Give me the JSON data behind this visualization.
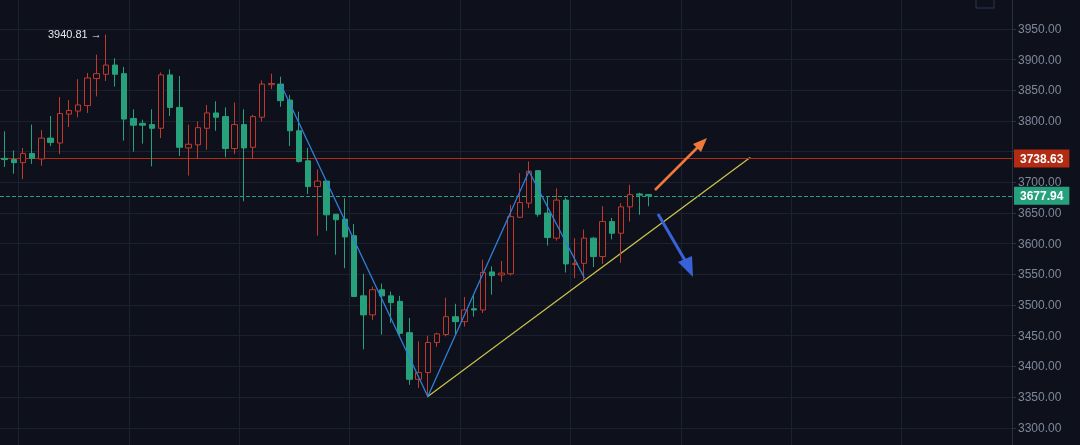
{
  "chart_data": {
    "type": "candlestick",
    "categories": [
      null,
      null,
      null,
      null,
      null,
      null,
      null,
      null,
      null,
      null,
      null,
      null,
      null,
      null,
      null,
      null,
      null,
      null,
      null,
      null,
      null,
      null,
      null,
      null,
      null,
      null,
      null,
      null,
      null,
      null,
      null,
      null,
      null,
      null,
      null,
      null,
      null,
      null,
      null,
      null,
      null,
      null,
      null,
      null,
      null,
      null,
      null,
      null,
      null,
      null,
      null,
      null,
      null,
      null,
      null,
      null,
      null,
      null,
      null,
      null,
      null,
      null,
      null,
      null,
      null,
      null,
      null,
      null,
      null,
      null,
      null,
      null,
      null,
      null,
      null,
      null,
      null,
      null,
      null,
      null,
      null,
      null,
      null,
      null,
      null,
      null,
      null,
      null,
      null,
      null,
      null,
      null,
      null,
      null,
      null,
      null,
      null,
      null,
      null,
      null,
      null,
      null,
      null,
      null,
      null,
      null,
      null,
      null,
      null,
      null
    ],
    "ohlc": [
      [
        3739,
        3783,
        3725,
        3737
      ],
      [
        3737,
        3752,
        3714,
        3732
      ],
      [
        3732,
        3756,
        3705,
        3747
      ],
      [
        3747,
        3794,
        3730,
        3739
      ],
      [
        3738,
        3785,
        3727,
        3772
      ],
      [
        3772,
        3808,
        3759,
        3765
      ],
      [
        3764,
        3839,
        3746,
        3812
      ],
      [
        3811,
        3834,
        3790,
        3817
      ],
      [
        3816,
        3868,
        3806,
        3826
      ],
      [
        3825,
        3878,
        3813,
        3870
      ],
      [
        3869,
        3908,
        3840,
        3877
      ],
      [
        3876,
        3940.81,
        3865,
        3891
      ],
      [
        3891,
        3902,
        3856,
        3876
      ],
      [
        3877,
        3888,
        3768,
        3803
      ],
      [
        3804,
        3819,
        3750,
        3793
      ],
      [
        3796,
        3802,
        3763,
        3793
      ],
      [
        3794,
        3819,
        3726,
        3788
      ],
      [
        3788,
        3879,
        3772,
        3875
      ],
      [
        3875,
        3884,
        3808,
        3822
      ],
      [
        3822,
        3873,
        3743,
        3757
      ],
      [
        3756,
        3794,
        3711,
        3762
      ],
      [
        3761,
        3799,
        3738,
        3789
      ],
      [
        3788,
        3826,
        3753,
        3813
      ],
      [
        3813,
        3832,
        3784,
        3806
      ],
      [
        3807,
        3822,
        3741,
        3755
      ],
      [
        3755,
        3830,
        3746,
        3794
      ],
      [
        3794,
        3819,
        3669,
        3756
      ],
      [
        3757,
        3810,
        3738,
        3807
      ],
      [
        3806,
        3866,
        3799,
        3860
      ],
      [
        3859,
        3877,
        3852,
        3861
      ],
      [
        3860,
        3872,
        3823,
        3833
      ],
      [
        3834,
        3842,
        3759,
        3784
      ],
      [
        3784,
        3815,
        3732,
        3734
      ],
      [
        3735,
        3756,
        3681,
        3693
      ],
      [
        3693,
        3721,
        3613,
        3702
      ],
      [
        3702,
        3702,
        3621,
        3647
      ],
      [
        3648,
        3648,
        3582,
        3639
      ],
      [
        3640,
        3674,
        3560,
        3611
      ],
      [
        3613,
        3632,
        3513,
        3514
      ],
      [
        3515,
        3551,
        3428,
        3484
      ],
      [
        3484,
        3530,
        3476,
        3525
      ],
      [
        3525,
        3535,
        3452,
        3515
      ],
      [
        3515,
        3522,
        3471,
        3504
      ],
      [
        3506,
        3515,
        3449,
        3454
      ],
      [
        3455,
        3479,
        3370,
        3379
      ],
      [
        3379,
        3441,
        3365,
        3390
      ],
      [
        3390,
        3450,
        3351,
        3439
      ],
      [
        3439,
        3455,
        3432,
        3453
      ],
      [
        3452,
        3512,
        3449,
        3481
      ],
      [
        3481,
        3502,
        3452,
        3473
      ],
      [
        3473,
        3513,
        3465,
        3492
      ],
      [
        3494,
        3518,
        3481,
        3492
      ],
      [
        3492,
        3574,
        3487,
        3553
      ],
      [
        3554,
        3563,
        3517,
        3548
      ],
      [
        3549,
        3572,
        3538,
        3552
      ],
      [
        3551,
        3663,
        3548,
        3644
      ],
      [
        3643,
        3715,
        3642,
        3667
      ],
      [
        3666,
        3734,
        3658,
        3718
      ],
      [
        3719,
        3719,
        3644,
        3648
      ],
      [
        3650,
        3677,
        3597,
        3610
      ],
      [
        3609,
        3690,
        3605,
        3671
      ],
      [
        3671,
        3675,
        3553,
        3567
      ],
      [
        3566,
        3609,
        3544,
        3568
      ],
      [
        3568,
        3623,
        3539,
        3609
      ],
      [
        3609,
        3611,
        3562,
        3579
      ],
      [
        3579,
        3661,
        3567,
        3636
      ],
      [
        3636,
        3642,
        3607,
        3617
      ],
      [
        3617,
        3666,
        3569,
        3660
      ],
      [
        3660,
        3696,
        3636,
        3680
      ],
      [
        3681,
        3683,
        3647,
        3679
      ],
      [
        3680,
        3680,
        3661,
        3677.94
      ],
      null,
      null,
      null,
      null,
      null,
      null,
      null,
      null,
      null,
      null,
      null,
      null,
      null,
      null,
      null,
      null,
      null,
      null,
      null,
      null,
      null,
      null,
      null,
      null,
      null,
      null,
      null,
      null,
      null,
      null,
      null,
      null,
      null,
      null,
      null,
      null,
      null,
      null,
      null
    ],
    "series": [
      {
        "type": "line",
        "color": "#2f7fd8",
        "values": [
          null,
          null,
          null,
          null,
          null,
          null,
          null,
          null,
          null,
          null,
          null,
          null,
          null,
          null,
          null,
          null,
          null,
          null,
          null,
          null,
          null,
          null,
          null,
          null,
          null,
          null,
          null,
          null,
          null,
          null,
          3860,
          null,
          null,
          null,
          null,
          null,
          null,
          null,
          null,
          null,
          null,
          null,
          null,
          null,
          null,
          null,
          3351,
          null,
          null,
          null,
          null,
          null,
          null,
          null,
          null,
          null,
          null,
          3718,
          null,
          null,
          null,
          null,
          null,
          3545,
          null,
          null,
          null,
          null,
          null,
          null,
          null,
          null,
          null,
          null,
          null,
          null,
          null,
          null,
          null,
          null,
          null,
          null,
          null,
          null,
          null,
          null,
          null,
          null,
          null,
          null,
          null,
          null,
          null,
          null,
          null,
          null,
          null,
          null,
          null,
          null,
          null,
          null,
          null,
          null,
          null,
          null,
          null,
          null,
          null,
          null
        ]
      },
      {
        "type": "line",
        "color": "#c8c24a",
        "values": [
          null,
          null,
          null,
          null,
          null,
          null,
          null,
          null,
          null,
          null,
          null,
          null,
          null,
          null,
          null,
          null,
          null,
          null,
          null,
          null,
          null,
          null,
          null,
          null,
          null,
          null,
          null,
          null,
          null,
          null,
          null,
          null,
          null,
          null,
          null,
          null,
          null,
          null,
          null,
          null,
          null,
          null,
          null,
          null,
          null,
          null,
          3351,
          null,
          null,
          null,
          null,
          null,
          null,
          null,
          null,
          null,
          null,
          null,
          null,
          null,
          null,
          null,
          null,
          null,
          null,
          null,
          null,
          null,
          null,
          null,
          null,
          null,
          null,
          null,
          null,
          null,
          null,
          null,
          null,
          null,
          null,
          3740,
          null,
          null,
          null,
          null,
          null,
          null,
          null,
          null,
          null,
          null,
          null,
          null,
          null,
          null,
          null,
          null,
          null,
          null,
          null,
          null,
          null,
          null,
          null,
          null,
          null,
          null,
          null,
          null
        ]
      }
    ],
    "ylim": [
      3272,
      3997
    ],
    "yticks": [
      {
        "value": 3300,
        "label": "3300.00"
      },
      {
        "value": 3350,
        "label": "3350.00"
      },
      {
        "value": 3400,
        "label": "3400.00"
      },
      {
        "value": 3450,
        "label": "3450.00"
      },
      {
        "value": 3500,
        "label": "3500.00"
      },
      {
        "value": 3550,
        "label": "3550.00"
      },
      {
        "value": 3600,
        "label": "3600.00"
      },
      {
        "value": 3650,
        "label": "3650.00"
      },
      {
        "value": 3700,
        "label": "3700.00"
      },
      {
        "value": 3750,
        "label": null
      },
      {
        "value": 3800,
        "label": "3800.00"
      },
      {
        "value": 3850,
        "label": "3850.00"
      },
      {
        "value": 3900,
        "label": "3900.00"
      },
      {
        "value": 3950,
        "label": "3950.00"
      }
    ],
    "ref_lines": [
      {
        "axis": "y",
        "value": 3738.63,
        "label": "3738.63",
        "color": "#b22b12",
        "line_style": "solid"
      },
      {
        "axis": "y",
        "value": 3677.94,
        "label": "3677.94",
        "color": "#26a17b",
        "line_style": "dashed"
      }
    ],
    "annotations": [
      "3940.81 →"
    ],
    "grid": true,
    "tick_labels": "y",
    "marker": "none",
    "line_style": "solid"
  }
}
